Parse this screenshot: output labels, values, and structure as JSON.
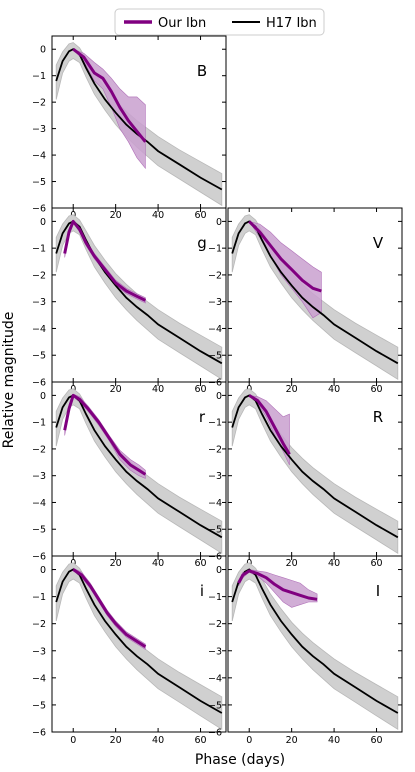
{
  "legend": {
    "placement": "top-center",
    "entries": [
      {
        "label": "Our Ibn",
        "color": "#800080"
      },
      {
        "label": "H17 Ibn",
        "color": "#000000"
      }
    ]
  },
  "xlabel": "Phase (days)",
  "ylabel": "Relative magnitude",
  "colors": {
    "ours": "#800080",
    "ours_band": "#c9a0cf",
    "h17": "#000000",
    "h17_band": "#d0d0d0"
  },
  "chart_data": [
    {
      "type": "line",
      "band": "B",
      "xlim": [
        -10,
        72
      ],
      "ylim": [
        -6,
        0.5
      ],
      "xticks": [
        0,
        20,
        40,
        60
      ],
      "yticks": [
        0,
        -1,
        -2,
        -3,
        -4,
        -5,
        -6
      ],
      "series": [
        {
          "name": "Our Ibn",
          "x": [
            0,
            5,
            10,
            14,
            18,
            22,
            26,
            30,
            34
          ],
          "y": [
            0,
            -0.3,
            -0.9,
            -1.1,
            -1.6,
            -2.2,
            -2.7,
            -3.1,
            -3.5
          ],
          "y_upper": [
            0,
            -0.15,
            -0.5,
            -0.75,
            -1.1,
            -1.5,
            -1.8,
            -1.8,
            -2.1
          ],
          "y_lower": [
            0,
            -0.45,
            -1.2,
            -1.5,
            -2.2,
            -3.0,
            -3.5,
            -4.1,
            -4.5
          ]
        }
      ]
    },
    {
      "type": "line",
      "band": "g",
      "xlim": [
        -10,
        72
      ],
      "ylim": [
        -6,
        0.5
      ],
      "xticks": [
        0,
        20,
        40,
        60
      ],
      "yticks": [
        0,
        -1,
        -2,
        -3,
        -4,
        -5,
        -6
      ],
      "series": [
        {
          "name": "Our Ibn",
          "x": [
            -4,
            -2,
            0,
            3,
            6,
            10,
            15,
            20,
            25,
            30,
            34
          ],
          "y": [
            -1.2,
            -0.4,
            0,
            -0.3,
            -0.8,
            -1.3,
            -1.8,
            -2.3,
            -2.6,
            -2.8,
            -2.95
          ],
          "y_upper": [
            -1.05,
            -0.3,
            0.05,
            -0.2,
            -0.7,
            -1.2,
            -1.7,
            -2.2,
            -2.5,
            -2.7,
            -2.85
          ],
          "y_lower": [
            -1.35,
            -0.5,
            -0.05,
            -0.4,
            -0.9,
            -1.4,
            -1.9,
            -2.4,
            -2.7,
            -2.9,
            -3.05
          ]
        }
      ]
    },
    {
      "type": "line",
      "band": "V",
      "xlim": [
        -10,
        72
      ],
      "ylim": [
        -6,
        0.5
      ],
      "xticks": [
        0,
        20,
        40,
        60
      ],
      "yticks": [
        0,
        -1,
        -2,
        -3,
        -4,
        -5,
        -6
      ],
      "series": [
        {
          "name": "Our Ibn",
          "x": [
            0,
            5,
            10,
            15,
            20,
            25,
            30,
            34
          ],
          "y": [
            0,
            -0.4,
            -0.9,
            -1.4,
            -1.8,
            -2.2,
            -2.5,
            -2.6
          ],
          "y_upper": [
            0,
            -0.1,
            -0.4,
            -0.8,
            -1.1,
            -1.4,
            -1.7,
            -1.9
          ],
          "y_lower": [
            0,
            -0.6,
            -1.3,
            -2.0,
            -2.5,
            -3.0,
            -3.6,
            -3.4
          ]
        }
      ]
    },
    {
      "type": "line",
      "band": "r",
      "xlim": [
        -10,
        72
      ],
      "ylim": [
        -6,
        0.5
      ],
      "xticks": [
        0,
        20,
        40,
        60
      ],
      "yticks": [
        0,
        -1,
        -2,
        -3,
        -4,
        -5,
        -6
      ],
      "series": [
        {
          "name": "Our Ibn",
          "x": [
            -4,
            -2,
            0,
            3,
            7,
            12,
            17,
            22,
            27,
            31,
            34
          ],
          "y": [
            -1.3,
            -0.5,
            0,
            -0.15,
            -0.5,
            -1.0,
            -1.6,
            -2.2,
            -2.6,
            -2.8,
            -2.95
          ],
          "y_upper": [
            -1.1,
            -0.35,
            0.05,
            -0.05,
            -0.4,
            -0.9,
            -1.5,
            -2.05,
            -2.4,
            -2.6,
            -2.8
          ],
          "y_lower": [
            -1.5,
            -0.65,
            -0.05,
            -0.25,
            -0.6,
            -1.1,
            -1.7,
            -2.4,
            -2.8,
            -3.0,
            -3.1
          ]
        }
      ]
    },
    {
      "type": "line",
      "band": "R",
      "xlim": [
        -10,
        72
      ],
      "ylim": [
        -6,
        0.5
      ],
      "xticks": [
        0,
        20,
        40,
        60
      ],
      "yticks": [
        0,
        -1,
        -2,
        -3,
        -4,
        -5,
        -6
      ],
      "series": [
        {
          "name": "Our Ibn",
          "x": [
            0,
            4,
            8,
            12,
            16,
            19
          ],
          "y": [
            0,
            -0.2,
            -0.6,
            -1.2,
            -1.8,
            -2.2
          ],
          "y_upper": [
            0,
            -0.05,
            -0.2,
            -0.5,
            -0.8,
            -0.7
          ],
          "y_lower": [
            0,
            -0.3,
            -0.8,
            -1.5,
            -2.1,
            -2.6
          ]
        }
      ]
    },
    {
      "type": "line",
      "band": "i",
      "xlim": [
        -10,
        72
      ],
      "ylim": [
        -6,
        0.5
      ],
      "xticks": [
        0,
        20,
        40,
        60
      ],
      "yticks": [
        0,
        -1,
        -2,
        -3,
        -4,
        -5,
        -6
      ],
      "series": [
        {
          "name": "Our Ibn",
          "x": [
            0,
            4,
            8,
            12,
            16,
            20,
            25,
            30,
            34
          ],
          "y": [
            0,
            -0.2,
            -0.6,
            -1.1,
            -1.6,
            -2.0,
            -2.4,
            -2.65,
            -2.85
          ],
          "y_upper": [
            0.05,
            -0.1,
            -0.5,
            -1.0,
            -1.5,
            -1.9,
            -2.3,
            -2.55,
            -2.75
          ],
          "y_lower": [
            -0.05,
            -0.3,
            -0.7,
            -1.2,
            -1.7,
            -2.1,
            -2.5,
            -2.75,
            -2.95
          ]
        }
      ]
    },
    {
      "type": "line",
      "band": "I",
      "xlim": [
        -10,
        72
      ],
      "ylim": [
        -6,
        0.5
      ],
      "xticks": [
        0,
        20,
        40,
        60
      ],
      "yticks": [
        0,
        -1,
        -2,
        -3,
        -4,
        -5,
        -6
      ],
      "series": [
        {
          "name": "Our Ibn",
          "x": [
            -5,
            -3,
            0,
            4,
            8,
            12,
            16,
            20,
            24,
            28,
            32
          ],
          "y": [
            -0.5,
            -0.2,
            -0.05,
            -0.15,
            -0.3,
            -0.55,
            -0.75,
            -0.85,
            -0.95,
            -1.05,
            -1.1
          ],
          "y_upper": [
            -0.4,
            -0.1,
            0.0,
            -0.05,
            -0.1,
            -0.2,
            -0.3,
            -0.4,
            -0.5,
            -0.75,
            -0.9
          ],
          "y_lower": [
            -0.6,
            -0.3,
            -0.1,
            -0.25,
            -0.5,
            -0.85,
            -1.2,
            -1.4,
            -1.3,
            -1.2,
            -1.2
          ]
        }
      ]
    }
  ],
  "h17_template": {
    "name": "H17 Ibn",
    "x": [
      -8,
      -5,
      -2,
      0,
      3,
      6,
      10,
      15,
      20,
      25,
      30,
      35,
      40,
      50,
      60,
      70
    ],
    "y": [
      -1.2,
      -0.45,
      -0.08,
      0,
      -0.2,
      -0.7,
      -1.3,
      -1.9,
      -2.4,
      -2.85,
      -3.2,
      -3.5,
      -3.85,
      -4.35,
      -4.85,
      -5.3
    ],
    "y_upper": [
      -0.6,
      -0.1,
      0.2,
      0.25,
      0.05,
      -0.35,
      -0.9,
      -1.45,
      -1.95,
      -2.35,
      -2.7,
      -3.0,
      -3.3,
      -3.8,
      -4.25,
      -4.7
    ],
    "y_lower": [
      -1.9,
      -0.9,
      -0.45,
      -0.35,
      -0.5,
      -1.05,
      -1.7,
      -2.3,
      -2.85,
      -3.3,
      -3.7,
      -4.05,
      -4.4,
      -4.9,
      -5.4,
      -5.9
    ]
  }
}
